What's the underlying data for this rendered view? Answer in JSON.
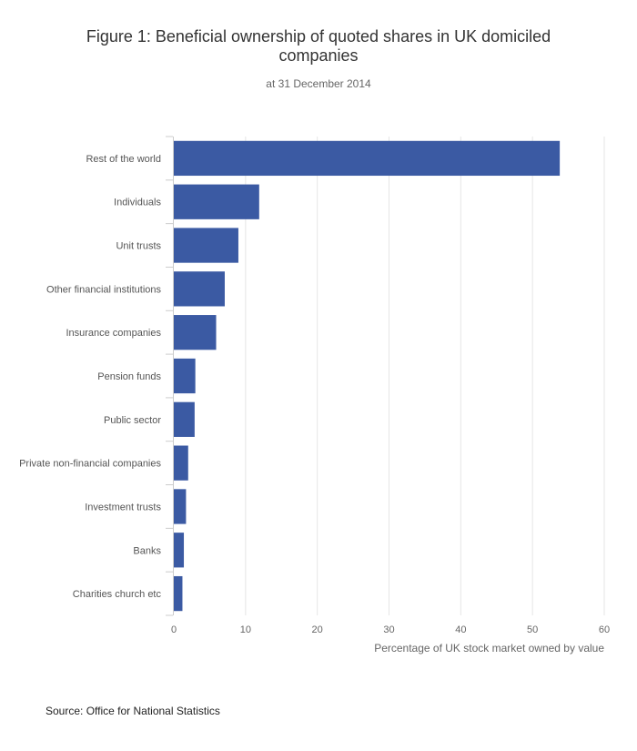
{
  "chart_data": {
    "type": "bar",
    "orientation": "horizontal",
    "title": "Figure 1: Beneficial ownership of quoted shares in UK domiciled companies",
    "title_lines": [
      "Figure 1: Beneficial ownership of quoted shares in UK domiciled",
      "companies"
    ],
    "subtitle": "at 31 December 2014",
    "categories": [
      "Rest of the world",
      "Individuals",
      "Unit trusts",
      "Other financial institutions",
      "Insurance companies",
      "Pension funds",
      "Public sector",
      "Private non-financial companies",
      "Investment trusts",
      "Banks",
      "Charities church etc"
    ],
    "values": [
      53.8,
      11.9,
      9.0,
      7.1,
      5.9,
      3.0,
      2.9,
      2.0,
      1.7,
      1.4,
      1.2
    ],
    "xlabel": "Percentage of UK stock market owned by value",
    "ylabel": "",
    "xlim": [
      0,
      60
    ],
    "xticks": [
      "0",
      "10",
      "20",
      "30",
      "40",
      "50",
      "60"
    ],
    "grid": true,
    "bar_color": "#3b5aa3"
  },
  "source": "Source: Office for National Statistics"
}
